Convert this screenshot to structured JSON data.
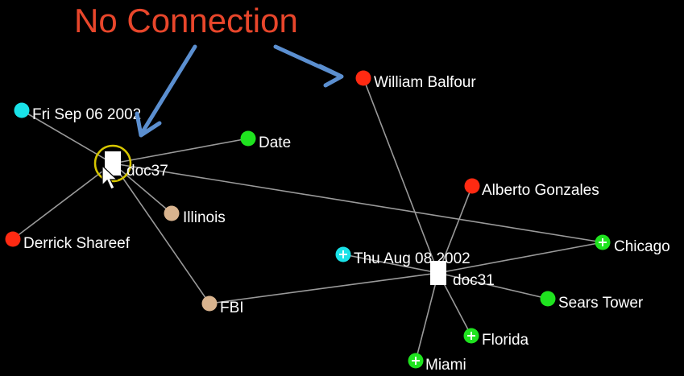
{
  "annotation": {
    "text": "No Connection",
    "color": "#e8462b",
    "arrow_color": "#5b8fd0"
  },
  "colors": {
    "person": "#ff2a12",
    "date": "#19e2e8",
    "place_event": "#1fe31f",
    "organization": "#d9b48f",
    "document": "#ffffff",
    "selection_ring": "#d6c600",
    "edge": "#9a9a9a"
  },
  "nodes": {
    "doc37": {
      "label": "doc37",
      "kind": "document"
    },
    "doc31": {
      "label": "doc31",
      "kind": "document"
    },
    "fri_sep": {
      "label": "Fri Sep 06 2002",
      "kind": "date"
    },
    "date": {
      "label": "Date",
      "kind": "place_event"
    },
    "illinois": {
      "label": "Illinois",
      "kind": "organization"
    },
    "derrick": {
      "label": "Derrick Shareef",
      "kind": "person"
    },
    "fbi": {
      "label": "FBI",
      "kind": "organization"
    },
    "william": {
      "label": "William Balfour",
      "kind": "person"
    },
    "alberto": {
      "label": "Alberto Gonzales",
      "kind": "person"
    },
    "chicago": {
      "label": "Chicago",
      "kind": "place_event",
      "expandable": true
    },
    "thu_aug": {
      "label": "Thu Aug 08 2002",
      "kind": "date",
      "expandable": true
    },
    "sears": {
      "label": "Sears Tower",
      "kind": "place_event"
    },
    "florida": {
      "label": "Florida",
      "kind": "place_event",
      "expandable": true
    },
    "miami": {
      "label": "Miami",
      "kind": "place_event",
      "expandable": true
    }
  },
  "edges": [
    [
      "doc37",
      "fri_sep"
    ],
    [
      "doc37",
      "date"
    ],
    [
      "doc37",
      "illinois"
    ],
    [
      "doc37",
      "derrick"
    ],
    [
      "doc37",
      "fbi"
    ],
    [
      "doc37",
      "chicago"
    ],
    [
      "doc31",
      "william"
    ],
    [
      "doc31",
      "alberto"
    ],
    [
      "doc31",
      "chicago"
    ],
    [
      "doc31",
      "thu_aug"
    ],
    [
      "doc31",
      "sears"
    ],
    [
      "doc31",
      "florida"
    ],
    [
      "doc31",
      "miami"
    ],
    [
      "doc31",
      "fbi"
    ]
  ],
  "selected_node": "doc37"
}
